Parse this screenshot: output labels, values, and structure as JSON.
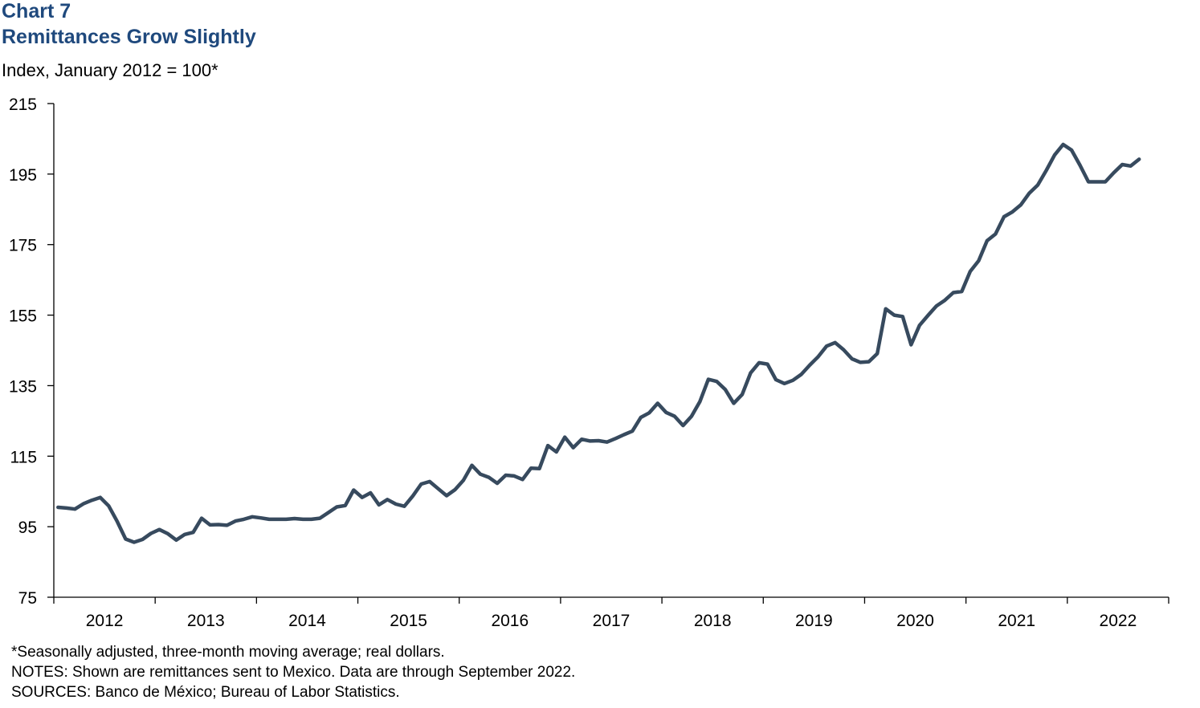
{
  "header": {
    "chart_label": "Chart 7",
    "title": "Remittances Grow Slightly",
    "unit_label": "Index, January 2012 = 100*"
  },
  "notes": [
    "*Seasonally adjusted, three-month moving average; real dollars.",
    "NOTES: Shown are remittances sent to Mexico. Data are through September 2022.",
    "SOURCES: Banco de México; Bureau of Labor Statistics."
  ],
  "colors": {
    "line": "#374a5e",
    "title": "#1f497d",
    "axis": "#000000"
  },
  "chart_data": {
    "type": "line",
    "title": "Remittances Grow Slightly",
    "ylabel": "Index, January 2012 = 100*",
    "xlabel": "",
    "ylim": [
      75,
      215
    ],
    "yticks": [
      75,
      95,
      115,
      135,
      155,
      175,
      195,
      215
    ],
    "xticks": [
      "2012",
      "2013",
      "2014",
      "2015",
      "2016",
      "2017",
      "2018",
      "2019",
      "2020",
      "2021",
      "2022"
    ],
    "grid": false,
    "legend": "none",
    "start": "2012-01",
    "end": "2022-09",
    "series": [
      {
        "values": [
          100.5,
          100.3,
          100.0,
          101.5,
          102.5,
          103.3,
          100.9,
          96.5,
          91.5,
          90.6,
          91.4,
          93.1,
          94.2,
          93.0,
          91.2,
          92.8,
          93.4,
          97.4,
          95.5,
          95.6,
          95.4,
          96.6,
          97.1,
          97.8,
          97.5,
          97.1,
          97.1,
          97.1,
          97.3,
          97.1,
          97.1,
          97.4,
          99.0,
          100.6,
          101.0,
          105.4,
          103.3,
          104.6,
          101.2,
          102.7,
          101.4,
          100.8,
          103.7,
          107.1,
          107.8,
          105.8,
          103.8,
          105.5,
          108.2,
          112.4,
          109.9,
          109.0,
          107.3,
          109.6,
          109.4,
          108.4,
          111.6,
          111.5,
          118.0,
          116.2,
          120.4,
          117.4,
          119.8,
          119.3,
          119.4,
          119.0,
          120.0,
          121.1,
          122.1,
          126.0,
          127.3,
          130.0,
          127.4,
          126.3,
          123.7,
          126.3,
          130.5,
          136.8,
          136.2,
          133.9,
          130.0,
          132.5,
          138.6,
          141.5,
          141.1,
          136.7,
          135.6,
          136.5,
          138.2,
          140.8,
          143.2,
          146.2,
          147.2,
          145.2,
          142.6,
          141.6,
          141.8,
          144.1,
          156.8,
          155.0,
          154.6,
          146.6,
          152.1,
          154.9,
          157.6,
          159.2,
          161.4,
          161.7,
          167.4,
          170.4,
          176.1,
          178.0,
          182.9,
          184.3,
          186.3,
          189.6,
          191.9,
          196.0,
          200.4,
          203.4,
          201.8,
          197.5,
          192.8,
          192.8,
          192.8,
          195.4,
          197.7,
          197.3,
          199.2
        ]
      }
    ]
  }
}
